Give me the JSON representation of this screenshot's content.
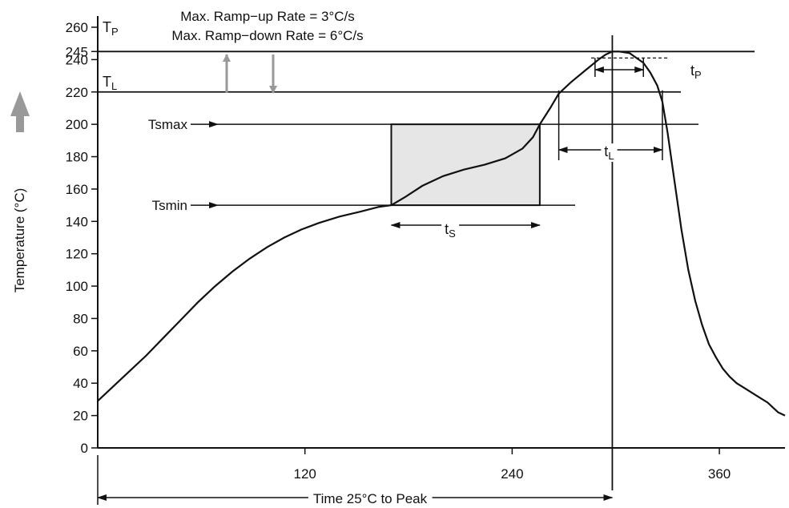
{
  "chart_data": {
    "type": "line",
    "xlabel": "Time 25°C to Peak",
    "ylabel": "Temperature (°C)",
    "xlim": [
      0,
      398
    ],
    "ylim": [
      0,
      260
    ],
    "x_ticks": [
      120,
      240,
      360
    ],
    "y_ticks": [
      0,
      20,
      40,
      60,
      80,
      100,
      120,
      140,
      160,
      180,
      200,
      220,
      240,
      245,
      260
    ],
    "grid": false,
    "notes": [
      "Max. Ramp−up Rate = 3°C/s",
      "Max. Ramp−down Rate = 6°C/s"
    ],
    "labels": {
      "tp_main": "T",
      "tp_sub": "P",
      "tl_main": "T",
      "tl_sub": "L",
      "tsmax": "Tsmax",
      "tsmin": "Tsmin",
      "ts_main": "t",
      "ts_sub": "S",
      "tl_time_main": "t",
      "tl_time_sub": "L",
      "tpk_main": "t",
      "tpk_sub": "P"
    },
    "levels": {
      "tp": 245,
      "tl": 220,
      "tsmax": 200,
      "tsmin": 150
    },
    "soak_window": {
      "x_start": 170,
      "x_end": 256,
      "y_min": 150,
      "y_max": 200
    },
    "liquidus_window": {
      "x_start": 267,
      "x_end": 327
    },
    "peak_window": {
      "x_start": 288,
      "x_end": 316
    },
    "peak_time": 298,
    "series": [
      {
        "x": [
          0,
          8,
          18,
          28,
          38,
          48,
          58,
          68,
          78,
          88,
          98,
          108,
          118,
          128,
          140,
          152,
          163,
          170,
          178,
          188,
          200,
          212,
          224,
          236,
          246,
          252,
          256,
          262,
          267,
          274,
          282,
          290,
          294,
          298,
          302,
          308,
          312,
          316,
          320,
          324,
          327,
          330,
          334,
          338,
          342,
          346,
          350,
          354,
          358,
          362,
          366,
          370,
          376,
          382,
          388,
          394,
          398
        ],
        "y": [
          29,
          37,
          47,
          57,
          68,
          79,
          90,
          100,
          109,
          117,
          124,
          130,
          135,
          139,
          143,
          146,
          149,
          150,
          155,
          162,
          168,
          172,
          175,
          179,
          185,
          192,
          200,
          210,
          219,
          226,
          233,
          240,
          243,
          245,
          245,
          244,
          241,
          238,
          232,
          224,
          214,
          195,
          165,
          135,
          110,
          91,
          76,
          64,
          56,
          49,
          44,
          40,
          36,
          32,
          28,
          22,
          20
        ]
      }
    ]
  }
}
